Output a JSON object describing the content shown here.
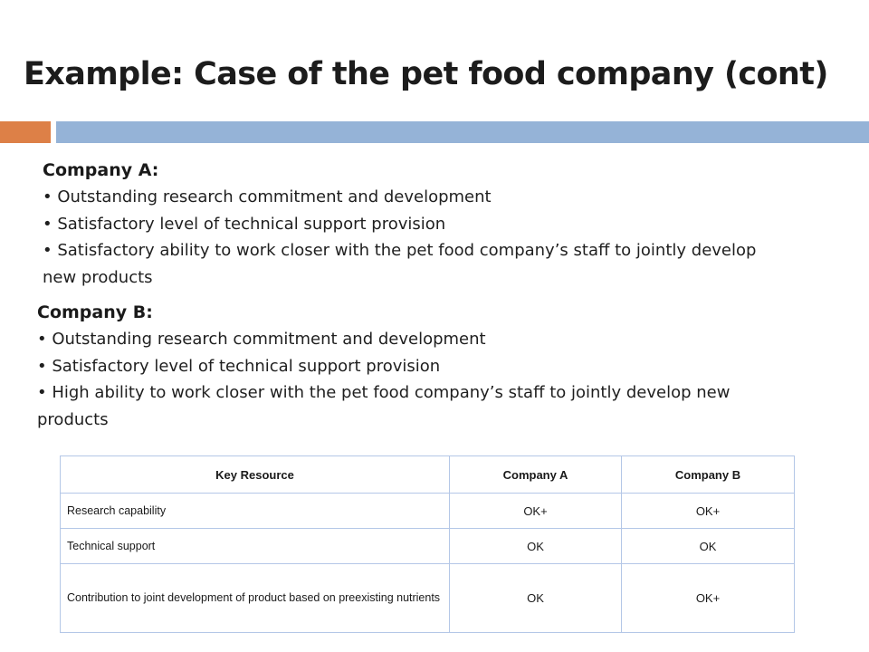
{
  "title": "Example: Case of the pet food company (cont)",
  "colors": {
    "accent_orange": "#dd8047",
    "accent_blue": "#95b3d7",
    "table_border": "#b4c7e7"
  },
  "company_a": {
    "heading": "Company A:",
    "points": [
      "Outstanding research commitment and development",
      "Satisfactory level of technical support provision",
      "Satisfactory ability to work closer with the pet food company’s staff to jointly develop new products"
    ]
  },
  "company_b": {
    "heading": "Company B:",
    "points": [
      "Outstanding research commitment and development",
      "Satisfactory level of technical support provision",
      "High ability to work closer with the pet food company’s staff to jointly develop new products"
    ]
  },
  "table": {
    "headers": [
      "Key Resource",
      "Company  A",
      "Company  B"
    ],
    "rows": [
      [
        "Research capability",
        "OK+",
        "OK+"
      ],
      [
        "Technical support",
        "OK",
        "OK"
      ],
      [
        "Contribution to joint development of product based on preexisting nutrients",
        "OK",
        "OK+"
      ]
    ]
  }
}
